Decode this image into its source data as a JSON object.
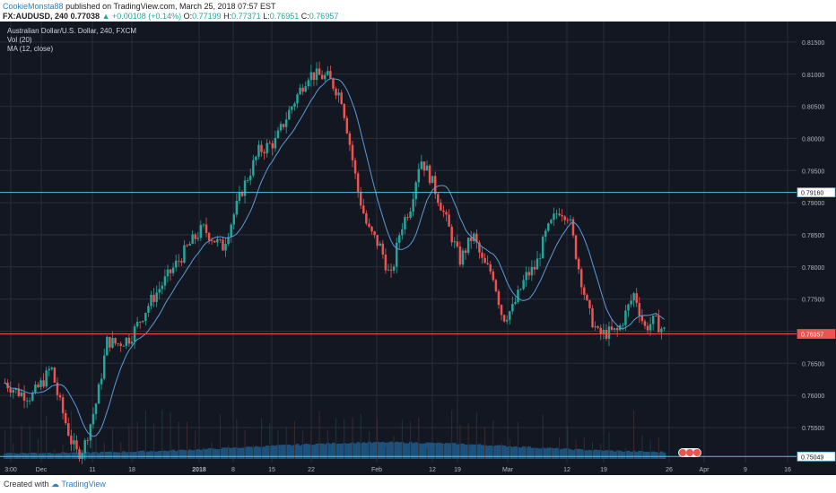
{
  "header": {
    "author": "CookieMonsta88",
    "published": "published on TradingView.com, March 25, 2018 07:57 EST",
    "symbol": "FX:AUDUSD, 240",
    "last": "0.77038",
    "change": "▲ +0.00108 (+0.14%)",
    "o_label": "O:",
    "o": "0.77199",
    "h_label": "H:",
    "h": "0.77371",
    "l_label": "L:",
    "l": "0.76951",
    "c_label": "C:",
    "c": "0.76957"
  },
  "legend": {
    "title": "Australian Dollar/U.S. Dollar, 240, FXCM",
    "vol": "Vol (20)",
    "ma": "MA (12, close)"
  },
  "footer": {
    "created_with": "Created with",
    "brand": "TradingView"
  },
  "colors": {
    "bg": "#131722",
    "grid": "#2a2e39",
    "up": "#26a69a",
    "down": "#ef5350",
    "hline_cyan": "#5bc0de",
    "hline_red": "#ef5350",
    "ma": "#5b9bd5",
    "volume": "#1e5b8a"
  },
  "chart_data": {
    "type": "candlestick",
    "title": "Australian Dollar/U.S. Dollar, 240, FXCM",
    "ylim": [
      0.7483,
      0.8175
    ],
    "y_ticks": [
      "0.81500",
      "0.81000",
      "0.80500",
      "0.80000",
      "0.79500",
      "0.79000",
      "0.78500",
      "0.78000",
      "0.77500",
      "0.77000",
      "0.76500",
      "0.76000",
      "0.75500"
    ],
    "x_ticks": [
      "3:00",
      "Dec",
      "11",
      "18",
      "2018",
      "8",
      "15",
      "22",
      "Feb",
      "12",
      "19",
      "Mar",
      "12",
      "19",
      "26",
      "Apr",
      "9",
      "16"
    ],
    "horizontal_lines": [
      {
        "value": 0.7916,
        "label": "0.79160",
        "color": "cyan"
      },
      {
        "value": 0.76957,
        "label": "0.76957",
        "color": "red"
      },
      {
        "value": 0.75049,
        "label": "0.75049",
        "color": "cyan"
      }
    ],
    "price_path": [
      [
        0,
        0.762
      ],
      [
        0.02,
        0.7605
      ],
      [
        0.04,
        0.7598
      ],
      [
        0.06,
        0.7625
      ],
      [
        0.07,
        0.7645
      ],
      [
        0.08,
        0.76
      ],
      [
        0.1,
        0.753
      ],
      [
        0.11,
        0.7508
      ],
      [
        0.12,
        0.752
      ],
      [
        0.14,
        0.7595
      ],
      [
        0.155,
        0.7685
      ],
      [
        0.17,
        0.768
      ],
      [
        0.19,
        0.769
      ],
      [
        0.22,
        0.7745
      ],
      [
        0.25,
        0.779
      ],
      [
        0.28,
        0.7835
      ],
      [
        0.3,
        0.786
      ],
      [
        0.33,
        0.783
      ],
      [
        0.36,
        0.792
      ],
      [
        0.385,
        0.798
      ],
      [
        0.41,
        0.7995
      ],
      [
        0.43,
        0.804
      ],
      [
        0.46,
        0.81
      ],
      [
        0.49,
        0.8095
      ],
      [
        0.51,
        0.8065
      ],
      [
        0.52,
        0.801
      ],
      [
        0.535,
        0.792
      ],
      [
        0.55,
        0.786
      ],
      [
        0.57,
        0.783
      ],
      [
        0.585,
        0.778
      ],
      [
        0.6,
        0.786
      ],
      [
        0.615,
        0.7895
      ],
      [
        0.63,
        0.797
      ],
      [
        0.645,
        0.794
      ],
      [
        0.66,
        0.79
      ],
      [
        0.675,
        0.7855
      ],
      [
        0.69,
        0.781
      ],
      [
        0.71,
        0.785
      ],
      [
        0.725,
        0.7805
      ],
      [
        0.74,
        0.779
      ],
      [
        0.755,
        0.772
      ],
      [
        0.77,
        0.7735
      ],
      [
        0.79,
        0.7785
      ],
      [
        0.805,
        0.78
      ],
      [
        0.82,
        0.785
      ],
      [
        0.84,
        0.789
      ],
      [
        0.855,
        0.788
      ],
      [
        0.87,
        0.78
      ],
      [
        0.885,
        0.773
      ],
      [
        0.9,
        0.7695
      ],
      [
        0.93,
        0.77
      ],
      [
        0.955,
        0.776
      ],
      [
        0.97,
        0.7705
      ],
      [
        0.985,
        0.7716
      ],
      [
        1.0,
        0.77
      ]
    ],
    "volume_profile": "rising from low in Dec to peak near Feb, moderate thereafter"
  }
}
